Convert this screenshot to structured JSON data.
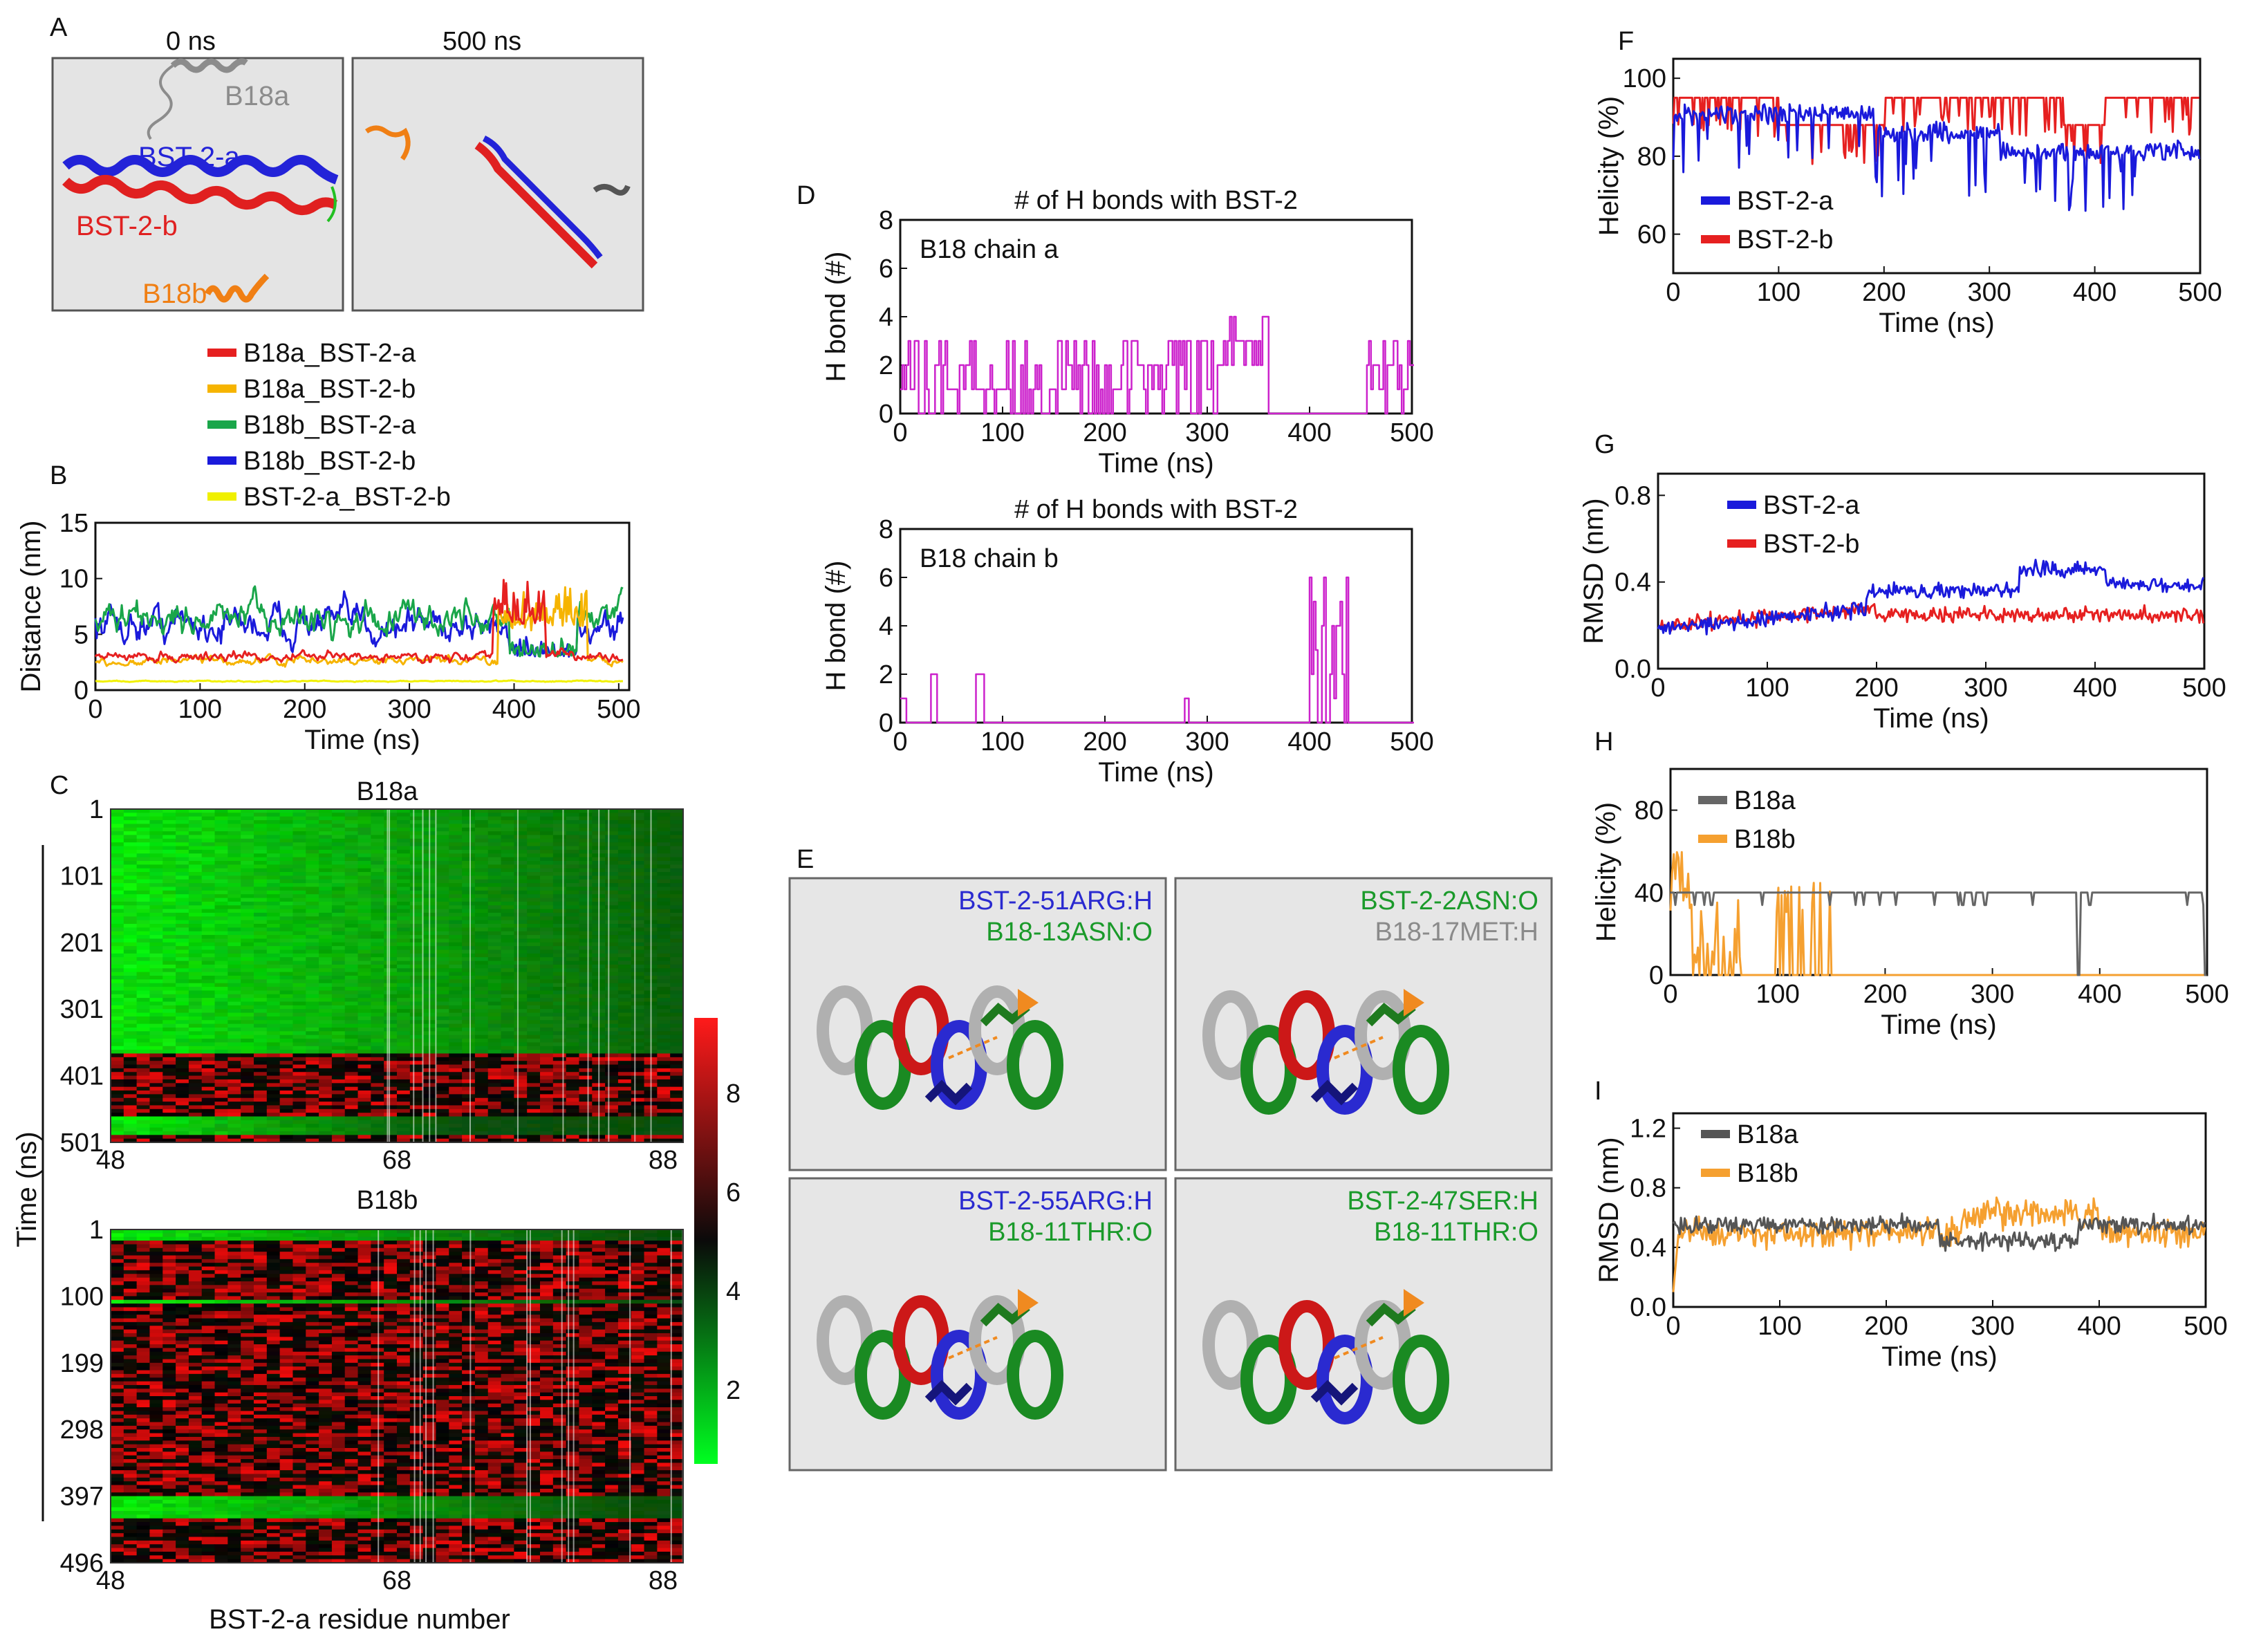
{
  "panel_labels": {
    "A": "A",
    "B": "B",
    "C": "C",
    "D": "D",
    "E": "E",
    "F": "F",
    "G": "G",
    "H": "H",
    "I": "I"
  },
  "panelA": {
    "time0": "0 ns",
    "time500": "500 ns",
    "labels": {
      "b18a": "B18a",
      "bst2a": "BST-2-a",
      "bst2b": "BST-2-b",
      "b18b": "B18b"
    },
    "colors": {
      "b18a": "#8c8c8c",
      "bst2a": "#2323d8",
      "bst2b": "#e02020",
      "b18b": "#f07f14"
    }
  },
  "panelE": {
    "boxes": [
      {
        "line1": "BST-2-51ARG:H",
        "line2": "B18-13ASN:O",
        "c1": "#2a2ad0",
        "c2": "#1a9a2a"
      },
      {
        "line1": "BST-2-2ASN:O",
        "line2": "B18-17MET:H",
        "c1": "#1a9a2a",
        "c2": "#8a8a8a"
      },
      {
        "line1": "BST-2-55ARG:H",
        "line2": "B18-11THR:O",
        "c1": "#2a2ad0",
        "c2": "#1a9a2a"
      },
      {
        "line1": "BST-2-47SER:H",
        "line2": "B18-11THR:O",
        "c1": "#1a9a2a",
        "c2": "#1a9a2a"
      }
    ]
  },
  "heatmap": {
    "titles": [
      "B18a",
      "B18b"
    ],
    "x_ticks": [
      "48",
      "68",
      "88"
    ],
    "y_ticks_a": [
      "1",
      "101",
      "201",
      "301",
      "401",
      "501"
    ],
    "y_ticks_b": [
      "1",
      "100",
      "199",
      "298",
      "397",
      "496"
    ],
    "ylabel": "Time (ns)",
    "xlabel": "BST-2-a residue number",
    "colorbar_ticks": [
      "2",
      "4",
      "6",
      "8"
    ]
  },
  "chart_data": [
    {
      "id": "B",
      "type": "line",
      "title": "",
      "xlabel": "Time (ns)",
      "ylabel": "Distance (nm)",
      "xlim": [
        0,
        510
      ],
      "ylim": [
        0,
        15
      ],
      "xticks": [
        0,
        100,
        200,
        300,
        400,
        500
      ],
      "yticks": [
        0,
        5,
        10,
        15
      ],
      "legend": "above",
      "series": [
        {
          "name": "B18a_BST-2-a",
          "color": "#e62020",
          "level": 3,
          "noise": 0.4,
          "spike_from": 380,
          "spike_to": 430
        },
        {
          "name": "B18a_BST-2-b",
          "color": "#f6b400",
          "level": 2.6,
          "noise": 0.35,
          "spike_from": 385,
          "spike_to": 470
        },
        {
          "name": "B18b_BST-2-a",
          "color": "#1aa64a",
          "level": 6.4,
          "noise": 1.4
        },
        {
          "name": "B18b_BST-2-b",
          "color": "#1a1adb",
          "level": 6.0,
          "noise": 1.5
        },
        {
          "name": "BST-2-a_BST-2-b",
          "color": "#f0f000",
          "level": 0.8,
          "noise": 0.05
        }
      ]
    },
    {
      "id": "D1",
      "type": "line",
      "title": "# of H bonds with BST-2",
      "annotation": "B18 chain a",
      "xlabel": "Time (ns)",
      "ylabel": "H bond (#)",
      "xlim": [
        0,
        500
      ],
      "ylim": [
        0,
        8
      ],
      "xticks": [
        0,
        100,
        200,
        300,
        400,
        500
      ],
      "yticks": [
        0,
        2,
        4,
        6,
        8
      ],
      "series": [
        {
          "name": "chain a",
          "color": "#cc22cc"
        }
      ]
    },
    {
      "id": "D2",
      "type": "line",
      "title": "# of H bonds with BST-2",
      "annotation": "B18 chain b",
      "xlabel": "Time (ns)",
      "ylabel": "H bond (#)",
      "xlim": [
        0,
        500
      ],
      "ylim": [
        0,
        8
      ],
      "xticks": [
        0,
        100,
        200,
        300,
        400,
        500
      ],
      "yticks": [
        0,
        2,
        4,
        6,
        8
      ],
      "series": [
        {
          "name": "chain b",
          "color": "#cc22cc"
        }
      ]
    },
    {
      "id": "F",
      "type": "line",
      "title": "",
      "xlabel": "Time (ns)",
      "ylabel": "Helicity (%)",
      "xlim": [
        0,
        500
      ],
      "ylim": [
        50,
        105
      ],
      "xticks": [
        0,
        100,
        200,
        300,
        400,
        500
      ],
      "yticks": [
        60,
        80,
        100
      ],
      "legend": "inside-left",
      "series": [
        {
          "name": "BST-2-a",
          "color": "#1a1adb"
        },
        {
          "name": "BST-2-b",
          "color": "#e62020"
        }
      ]
    },
    {
      "id": "G",
      "type": "line",
      "title": "",
      "xlabel": "Time (ns)",
      "ylabel": "RMSD (nm)",
      "xlim": [
        0,
        500
      ],
      "ylim": [
        0,
        0.9
      ],
      "xticks": [
        0,
        100,
        200,
        300,
        400,
        500
      ],
      "yticks": [
        0.0,
        0.4,
        0.8
      ],
      "legend": "top-left",
      "series": [
        {
          "name": "BST-2-a",
          "color": "#1a1adb"
        },
        {
          "name": "BST-2-b",
          "color": "#e62020"
        }
      ]
    },
    {
      "id": "H",
      "type": "line",
      "title": "",
      "xlabel": "Time (ns)",
      "ylabel": "Helicity (%)",
      "xlim": [
        0,
        500
      ],
      "ylim": [
        0,
        100
      ],
      "xticks": [
        0,
        100,
        200,
        300,
        400,
        500
      ],
      "yticks": [
        0,
        40,
        80
      ],
      "legend": "top-left",
      "series": [
        {
          "name": "B18a",
          "color": "#666666"
        },
        {
          "name": "B18b",
          "color": "#f5a030"
        }
      ]
    },
    {
      "id": "I",
      "type": "line",
      "title": "",
      "xlabel": "Time (ns)",
      "ylabel": "RMSD (nm)",
      "xlim": [
        0,
        500
      ],
      "ylim": [
        0,
        1.3
      ],
      "xticks": [
        0,
        100,
        200,
        300,
        400,
        500
      ],
      "yticks": [
        0.0,
        0.4,
        0.8,
        1.2
      ],
      "legend": "top-left",
      "series": [
        {
          "name": "B18a",
          "color": "#555555"
        },
        {
          "name": "B18b",
          "color": "#f5a030"
        }
      ]
    }
  ]
}
